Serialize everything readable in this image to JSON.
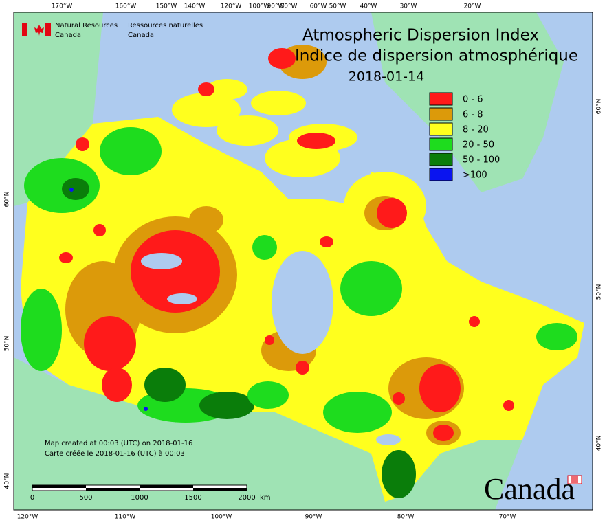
{
  "header": {
    "agency_en": [
      "Natural Resources",
      "Canada"
    ],
    "agency_fr": [
      "Ressources naturelles",
      "Canada"
    ]
  },
  "title": {
    "line1": "Atmospheric Dispersion Index",
    "line2": "Indice de dispersion atmosphérique",
    "date": "2018-01-14"
  },
  "legend": {
    "items": [
      {
        "label": "0 - 6",
        "color": "#ff1a1a"
      },
      {
        "label": "6 - 8",
        "color": "#dc9a0a"
      },
      {
        "label": "8 - 20",
        "color": "#ffff1e"
      },
      {
        "label": "20 - 50",
        "color": "#1edc1e"
      },
      {
        "label": "50 - 100",
        "color": "#0a7d0a"
      },
      {
        "label": ">100",
        "color": "#0a14f0"
      }
    ]
  },
  "graticule": {
    "top": [
      "170°W",
      "160°W",
      "150°W",
      "140°W",
      "120°W",
      "100°W",
      "90°W",
      "80°W",
      "60°W",
      "50°W",
      "40°W",
      "30°W",
      "20°W"
    ],
    "bottom": [
      "120°W",
      "110°W",
      "100°W",
      "90°W",
      "80°W",
      "70°W"
    ],
    "left": [
      "60°N",
      "50°N",
      "40°N"
    ],
    "right": [
      "60°N",
      "50°N",
      "40°N"
    ]
  },
  "notes": [
    "Map created at 00:03 (UTC) on 2018-01-16",
    "Carte créée le 2018-01-16 (UTC) à 00:03"
  ],
  "scale_bar": {
    "labels": [
      "0",
      "500",
      "1000",
      "1500",
      "2000"
    ],
    "unit": "km"
  },
  "wordmark": "Canada"
}
